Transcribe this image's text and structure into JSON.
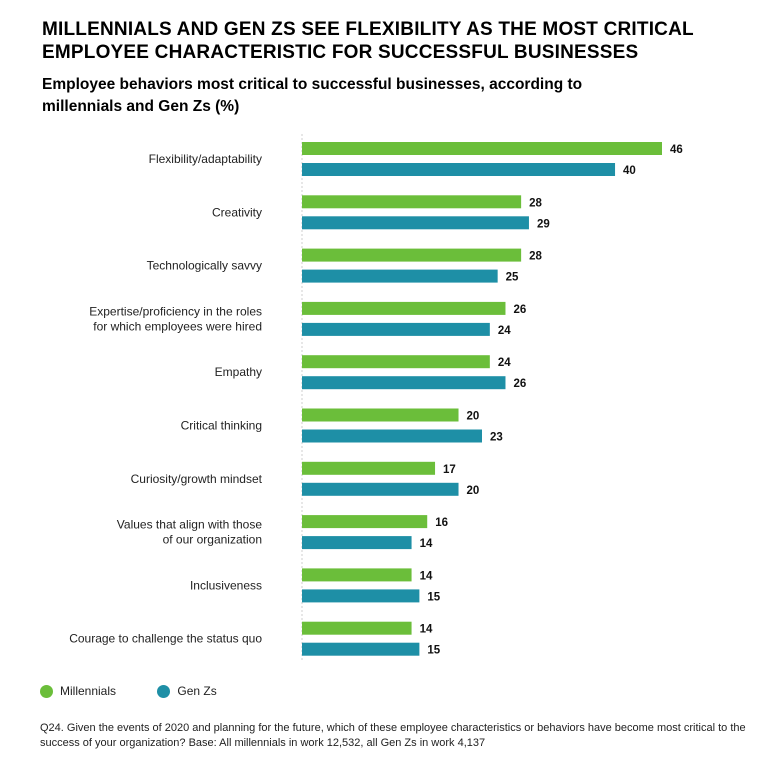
{
  "header": {
    "title": "MILLENNIALS AND GEN ZS SEE FLEXIBILITY AS THE MOST CRITICAL EMPLOYEE CHARACTERISTIC FOR SUCCESSFUL BUSINESSES",
    "subtitle": "Employee behaviors most critical to successful businesses, according to millennials and Gen Zs (%)"
  },
  "legend": {
    "millennials_label": "Millennials",
    "genz_label": "Gen Zs"
  },
  "footnote": "Q24. Given the events of 2020 and planning for the future, which of these employee characteristics or behaviors have become most critical to the success of your organization? Base: All millennials in work 12,532, all Gen Zs in work 4,137",
  "colors": {
    "millennials": "#6BBE3A",
    "genz": "#1E8FA6"
  },
  "chart_data": {
    "type": "bar",
    "orientation": "horizontal",
    "categories": [
      [
        "Flexibility/adaptability"
      ],
      [
        "Creativity"
      ],
      [
        "Technologically savvy"
      ],
      [
        "Expertise/proficiency in the roles",
        "for which employees were hired"
      ],
      [
        "Empathy"
      ],
      [
        "Critical thinking"
      ],
      [
        "Curiosity/growth mindset"
      ],
      [
        "Values that align with those",
        "of our organization"
      ],
      [
        "Inclusiveness"
      ],
      [
        "Courage to challenge the status quo"
      ]
    ],
    "series": [
      {
        "name": "Millennials",
        "values": [
          46,
          28,
          28,
          26,
          24,
          20,
          17,
          16,
          14,
          14
        ]
      },
      {
        "name": "Gen Zs",
        "values": [
          40,
          29,
          25,
          24,
          26,
          23,
          20,
          14,
          15,
          15
        ]
      }
    ],
    "xlim": [
      0,
      46
    ],
    "grid": false,
    "legend_position": "bottom-left"
  }
}
